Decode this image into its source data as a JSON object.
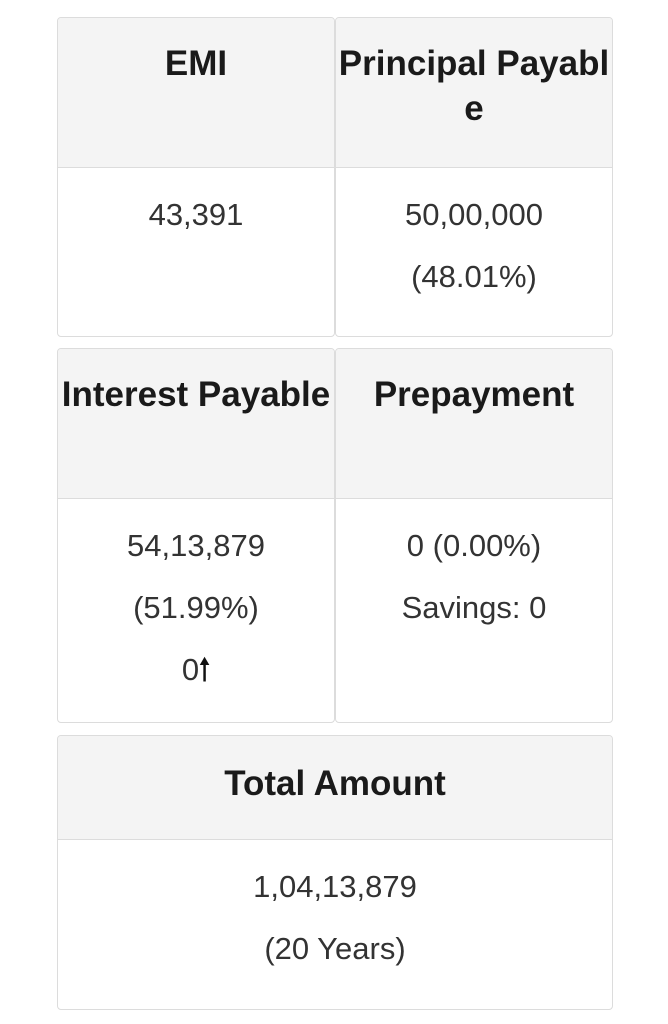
{
  "emi": {
    "title": "EMI",
    "value": "43,391"
  },
  "principal": {
    "title": "Principal Payable",
    "value": "50,00,000",
    "percent": "(48.01%)"
  },
  "interest": {
    "title": "Interest Payable",
    "value": "54,13,879",
    "percent": "(51.99%)",
    "change": "0",
    "change_icon": "arrow-up-icon"
  },
  "prepayment": {
    "title": "Prepayment",
    "value": "0 (0.00%)",
    "savings": "Savings: 0"
  },
  "total": {
    "title": "Total Amount",
    "value": "1,04,13,879",
    "tenure": "(20 Years)"
  }
}
